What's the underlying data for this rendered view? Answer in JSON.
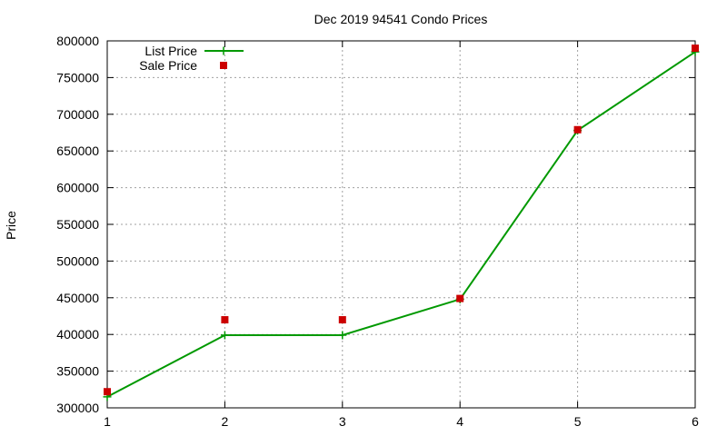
{
  "chart_data": {
    "type": "line",
    "title": "Dec 2019 94541 Condo Prices",
    "xlabel": "",
    "ylabel": "Price",
    "xlim": [
      1,
      6
    ],
    "ylim": [
      300000,
      800000
    ],
    "x_ticks": [
      "1",
      "2",
      "3",
      "4",
      "5",
      "6"
    ],
    "y_ticks": [
      "300000",
      "350000",
      "400000",
      "450000",
      "500000",
      "550000",
      "600000",
      "650000",
      "700000",
      "750000",
      "800000"
    ],
    "grid": true,
    "legend_position": "top-left",
    "x": [
      1,
      2,
      3,
      4,
      5,
      6
    ],
    "series": [
      {
        "name": "List Price",
        "style": "line with plus markers",
        "color": "#009900",
        "values": [
          315000,
          399000,
          399000,
          448000,
          678000,
          785000
        ]
      },
      {
        "name": "Sale Price",
        "style": "square points",
        "color": "#cc0000",
        "values": [
          322000,
          420000,
          420000,
          449000,
          679000,
          790000
        ]
      }
    ]
  }
}
